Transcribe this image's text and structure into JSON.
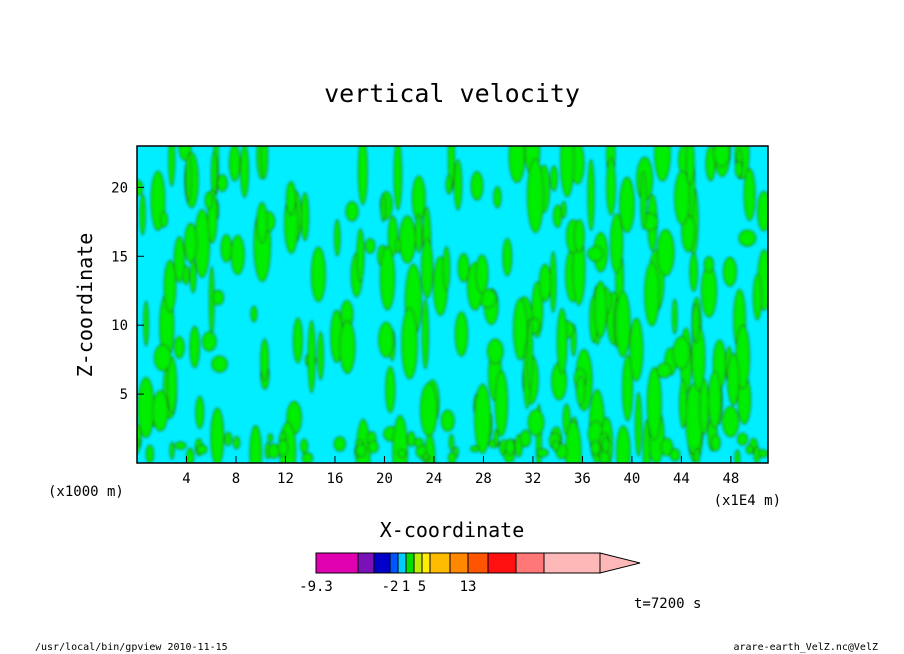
{
  "chart_data": {
    "type": "heatmap",
    "title": "vertical velocity",
    "xlabel": "X-coordinate",
    "ylabel": "Z-coordinate",
    "x_unit": "(x1E4 m)",
    "y_unit": "(x1000 m)",
    "x_ticks": [
      4,
      8,
      12,
      16,
      20,
      24,
      28,
      32,
      36,
      40,
      44,
      48
    ],
    "y_ticks": [
      5,
      10,
      15,
      20
    ],
    "xlim": [
      0,
      51
    ],
    "ylim": [
      0,
      23
    ],
    "dominant_fill_colors": [
      "#00eeff",
      "#00ee00"
    ],
    "colorbar": {
      "colors": [
        "#e000b0",
        "#7a10b8",
        "#0000c8",
        "#0055ff",
        "#00ccff",
        "#00e000",
        "#bbee00",
        "#ffee00",
        "#ffbb00",
        "#ff8800",
        "#ff5500",
        "#ff1010",
        "#ff7777",
        "#ffb8b8"
      ],
      "tick_labels": [
        {
          "value": "-9.3",
          "index": 0
        },
        {
          "value": "-2",
          "index": 3
        },
        {
          "value": "1",
          "index": 5
        },
        {
          "value": "5",
          "index": 7
        },
        {
          "value": "13",
          "index": 10
        }
      ],
      "extends": "max"
    },
    "time_label": "t=7200 s"
  },
  "footer": {
    "left": "/usr/local/bin/gpview  2010-11-15",
    "right": "arare-earth_VelZ.nc@VelZ"
  }
}
